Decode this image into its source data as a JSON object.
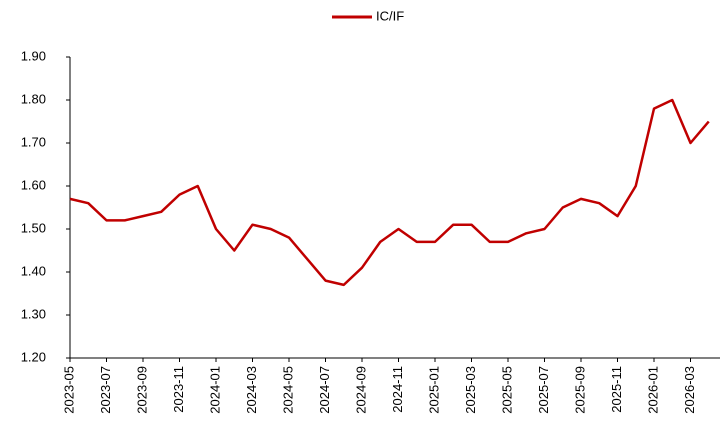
{
  "chart_data": {
    "type": "line",
    "categories": [
      "2023-05",
      "2023-06",
      "2023-07",
      "2023-08",
      "2023-09",
      "2023-10",
      "2023-11",
      "2023-12",
      "2024-01",
      "2024-02",
      "2024-03",
      "2024-04",
      "2024-05",
      "2024-06",
      "2024-07",
      "2024-08",
      "2024-09",
      "2024-10",
      "2024-11",
      "2024-12",
      "2025-01",
      "2025-02",
      "2025-03",
      "2025-04",
      "2025-05",
      "2025-06",
      "2025-07",
      "2025-08",
      "2025-09",
      "2025-10",
      "2025-11",
      "2025-12",
      "2026-01",
      "2026-02",
      "2026-03",
      "2026-04"
    ],
    "series": [
      {
        "name": "IC/IF",
        "color": "#c00000",
        "values": [
          1.57,
          1.56,
          1.52,
          1.52,
          1.53,
          1.54,
          1.58,
          1.6,
          1.5,
          1.45,
          1.51,
          1.5,
          1.48,
          1.43,
          1.38,
          1.37,
          1.41,
          1.47,
          1.5,
          1.47,
          1.47,
          1.51,
          1.51,
          1.47,
          1.47,
          1.49,
          1.5,
          1.55,
          1.57,
          1.56,
          1.53,
          1.6,
          1.78,
          1.8,
          1.7,
          1.75
        ]
      }
    ],
    "ylim": [
      1.2,
      1.9
    ],
    "yticks": [
      {
        "value": 1.2,
        "label": "1.20"
      },
      {
        "value": 1.3,
        "label": "1.30"
      },
      {
        "value": 1.4,
        "label": "1.40"
      },
      {
        "value": 1.5,
        "label": "1.50"
      },
      {
        "value": 1.6,
        "label": "1.60"
      },
      {
        "value": 1.7,
        "label": "1.70"
      },
      {
        "value": 1.8,
        "label": "1.80"
      },
      {
        "value": 1.9,
        "label": "1.90"
      }
    ],
    "legend": "top"
  }
}
